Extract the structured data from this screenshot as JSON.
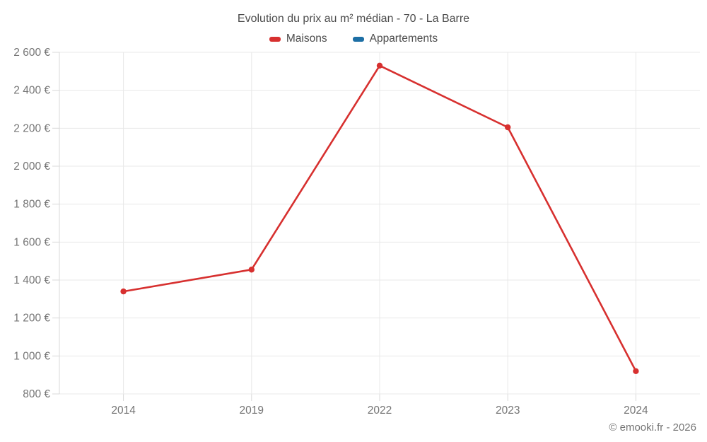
{
  "title": "Evolution du prix au m² médian - 70 - La Barre",
  "legend": {
    "items": [
      {
        "label": "Maisons",
        "color": "#d7302f"
      },
      {
        "label": "Appartements",
        "color": "#1d6fa5"
      }
    ]
  },
  "footer": {
    "copyright": "© emooki.fr - 2026"
  },
  "colors": {
    "grid": "#e8e8e8",
    "axis": "#d9d9d9",
    "tick": "#d9d9d9",
    "axis_label": "#757575",
    "title_text": "#4c4c4c"
  },
  "chart_data": {
    "type": "line",
    "title": "Evolution du prix au m² médian - 70 - La Barre",
    "categories": [
      "2014",
      "2019",
      "2022",
      "2023",
      "2024"
    ],
    "series": [
      {
        "name": "Maisons",
        "color": "#d7302f",
        "values": [
          1340,
          1455,
          2530,
          2205,
          920
        ]
      },
      {
        "name": "Appartements",
        "color": "#1d6fa5",
        "values": []
      }
    ],
    "xlabel": "",
    "ylabel": "",
    "ylim": [
      800,
      2600
    ],
    "y_step": 200,
    "y_ticks": [
      {
        "value": 2600,
        "label": "2 600 €"
      },
      {
        "value": 2400,
        "label": "2 400 €"
      },
      {
        "value": 2200,
        "label": "2 200 €"
      },
      {
        "value": 2000,
        "label": "2 000 €"
      },
      {
        "value": 1800,
        "label": "1 800 €"
      },
      {
        "value": 1600,
        "label": "1 600 €"
      },
      {
        "value": 1400,
        "label": "1 400 €"
      },
      {
        "value": 1200,
        "label": "1 200 €"
      },
      {
        "value": 1000,
        "label": "1 000 €"
      },
      {
        "value": 800,
        "label": "800 €"
      }
    ],
    "grid": true,
    "legend_position": "top",
    "currency_suffix": " €"
  }
}
